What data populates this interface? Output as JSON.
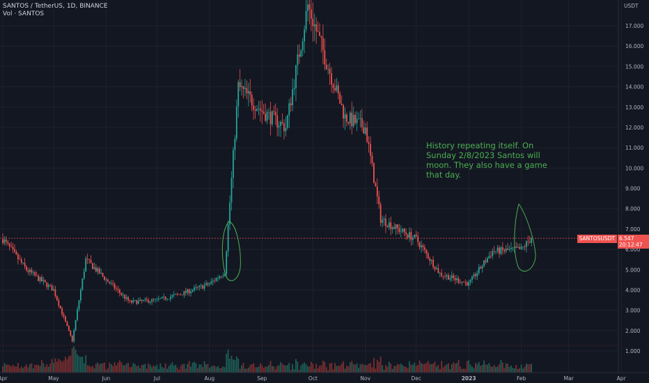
{
  "header": {
    "symbol_line": "SANTOS / TetherUS, 1D, BINANCE",
    "volume_line": "Vol · SANTOS"
  },
  "annotation": {
    "text": "History repeating itself. On Sunday 2/8/2023 Santos will moon. They also have a game that day."
  },
  "price_badge": {
    "symbol": "SANTOSUSDT",
    "price": "6.547",
    "countdown": "20:12:47"
  },
  "colors": {
    "background": "#131722",
    "up": "#26a69a",
    "down": "#ef5350",
    "grid": "#1e222d",
    "axis_text": "#b2b5be",
    "annotation": "#4caf50",
    "price_line": "#ef5350",
    "volume_up": "#1f5e57",
    "volume_down": "#7a2f30"
  },
  "chart_data": {
    "type": "candlestick",
    "y_axis_unit": "USDT",
    "y_ticks": [
      "1.000",
      "2.000",
      "3.000",
      "4.000",
      "5.000",
      "6.000",
      "7.000",
      "8.000",
      "9.000",
      "10.000",
      "11.000",
      "12.000",
      "13.000",
      "14.000",
      "15.000",
      "16.000",
      "17.000"
    ],
    "ylim": [
      0.5,
      18.4
    ],
    "x_ticks": [
      "Apr",
      "May",
      "Jun",
      "Jul",
      "Aug",
      "Sep",
      "Oct",
      "Nov",
      "Dec",
      "2023",
      "Feb",
      "Mar",
      "Apr"
    ],
    "grid": true,
    "current_price": 6.547,
    "series": [
      {
        "date": "2022-04-01",
        "value": 6.5
      },
      {
        "date": "2022-04-15",
        "value": 5.0
      },
      {
        "date": "2022-05-01",
        "value": 4.0
      },
      {
        "date": "2022-05-12",
        "value": 1.5
      },
      {
        "date": "2022-05-20",
        "value": 5.5
      },
      {
        "date": "2022-06-01",
        "value": 4.5
      },
      {
        "date": "2022-06-15",
        "value": 3.4
      },
      {
        "date": "2022-07-01",
        "value": 3.5
      },
      {
        "date": "2022-07-15",
        "value": 3.8
      },
      {
        "date": "2022-08-01",
        "value": 4.3
      },
      {
        "date": "2022-08-10",
        "value": 4.9
      },
      {
        "date": "2022-08-18",
        "value": 14.0
      },
      {
        "date": "2022-09-01",
        "value": 12.8
      },
      {
        "date": "2022-09-15",
        "value": 12.0
      },
      {
        "date": "2022-09-28",
        "value": 18.0
      },
      {
        "date": "2022-10-10",
        "value": 15.0
      },
      {
        "date": "2022-10-20",
        "value": 12.5
      },
      {
        "date": "2022-11-01",
        "value": 12.0
      },
      {
        "date": "2022-11-10",
        "value": 7.5
      },
      {
        "date": "2022-11-20",
        "value": 7.0
      },
      {
        "date": "2022-12-01",
        "value": 6.5
      },
      {
        "date": "2022-12-15",
        "value": 4.8
      },
      {
        "date": "2023-01-01",
        "value": 4.3
      },
      {
        "date": "2023-01-15",
        "value": 5.9
      },
      {
        "date": "2023-02-01",
        "value": 6.0
      },
      {
        "date": "2023-02-07",
        "value": 6.55
      }
    ]
  }
}
